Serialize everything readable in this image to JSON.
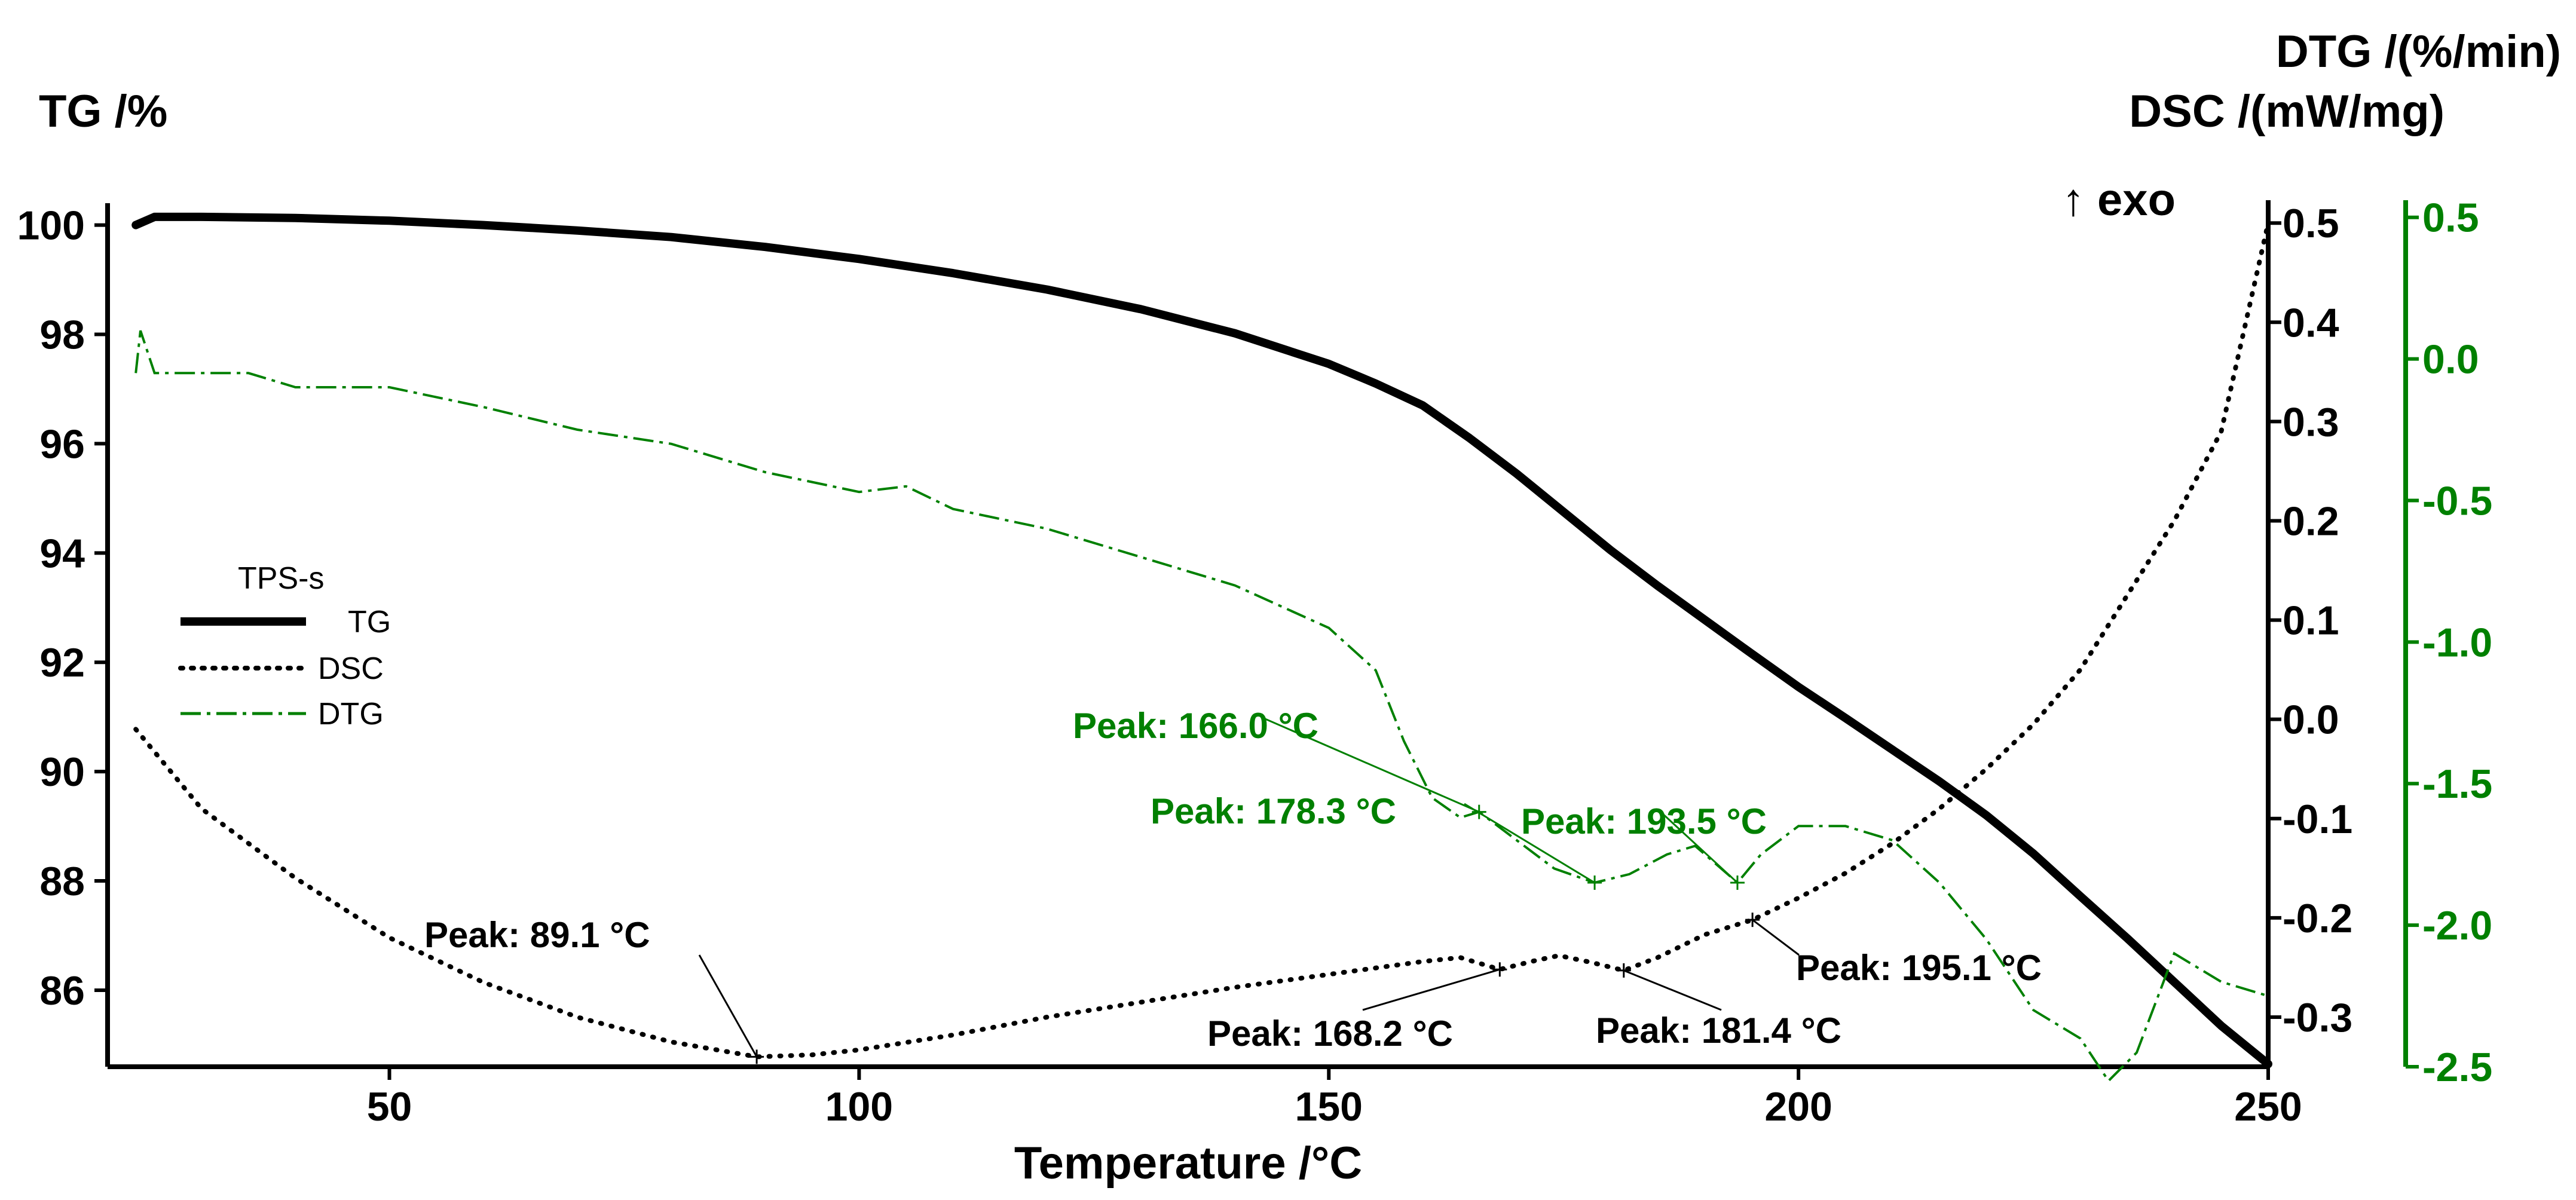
{
  "chart_data": {
    "type": "line",
    "title": "",
    "legend_title": "TPS-s",
    "legend_position": "middle-left",
    "xlabel": "Temperature /°C",
    "ylabel_left": "TG /%",
    "ylabel_right_top": "DTG /(%/min)",
    "ylabel_right_bottom": "DSC /(mW/mg)",
    "exo_label": "↑ exo",
    "colors": {
      "tg": "#000000",
      "dsc": "#000000",
      "dtg": "#008000"
    },
    "x_axis": {
      "range": [
        20,
        250
      ],
      "ticks": [
        50,
        100,
        150,
        200,
        250
      ],
      "tick_labels": [
        "50",
        "100",
        "150",
        "200",
        "250"
      ]
    },
    "tg_axis": {
      "range": [
        84.6,
        100.4
      ],
      "ticks": [
        86,
        88,
        90,
        92,
        94,
        96,
        98,
        100
      ],
      "tick_labels": [
        "86",
        "88",
        "90",
        "92",
        "94",
        "96",
        "98",
        "100"
      ]
    },
    "dsc_axis": {
      "range": [
        -0.35,
        0.52
      ],
      "ticks": [
        -0.3,
        -0.2,
        -0.1,
        0.0,
        0.1,
        0.2,
        0.3,
        0.4,
        0.5
      ],
      "tick_labels": [
        "-0.3",
        "-0.2",
        "-0.1",
        "0.0",
        "0.1",
        "0.2",
        "0.3",
        "0.4",
        "0.5"
      ]
    },
    "dtg_axis": {
      "range": [
        -2.5,
        0.55
      ],
      "ticks": [
        -2.5,
        -2.0,
        -1.5,
        -1.0,
        -0.5,
        0.0,
        0.5
      ],
      "tick_labels": [
        "-2.5",
        "-2.0",
        "-1.5",
        "-1.0",
        "-0.5",
        "0.0",
        "0.5"
      ]
    },
    "series": [
      {
        "name": "TG",
        "axis": "tg",
        "style": "solid",
        "x": [
          23,
          25,
          30,
          40,
          50,
          60,
          70,
          80,
          90,
          100,
          110,
          120,
          130,
          140,
          150,
          155,
          160,
          165,
          170,
          175,
          180,
          185,
          190,
          195,
          200,
          205,
          210,
          215,
          220,
          225,
          230,
          235,
          240,
          245,
          250
        ],
        "y": [
          100.0,
          100.15,
          100.15,
          100.13,
          100.08,
          100.0,
          99.9,
          99.78,
          99.6,
          99.38,
          99.12,
          98.82,
          98.46,
          98.02,
          97.46,
          97.1,
          96.7,
          96.1,
          95.45,
          94.75,
          94.05,
          93.4,
          92.78,
          92.16,
          91.55,
          90.98,
          90.4,
          89.82,
          89.2,
          88.5,
          87.72,
          86.95,
          86.15,
          85.35,
          84.65
        ]
      },
      {
        "name": "DSC",
        "axis": "dsc",
        "style": "dotted",
        "x": [
          23,
          30,
          40,
          50,
          60,
          70,
          80,
          89.1,
          95,
          100,
          110,
          120,
          130,
          140,
          150,
          160,
          164,
          168.2,
          172,
          174.5,
          178,
          181.4,
          185,
          190,
          195.1,
          200,
          205,
          210,
          215,
          220,
          225,
          230,
          235,
          240,
          245,
          250
        ],
        "y": [
          -0.01,
          -0.09,
          -0.16,
          -0.22,
          -0.265,
          -0.3,
          -0.325,
          -0.34,
          -0.338,
          -0.333,
          -0.318,
          -0.3,
          -0.285,
          -0.27,
          -0.257,
          -0.244,
          -0.24,
          -0.252,
          -0.243,
          -0.238,
          -0.245,
          -0.253,
          -0.24,
          -0.217,
          -0.202,
          -0.18,
          -0.155,
          -0.125,
          -0.09,
          -0.05,
          -0.005,
          0.05,
          0.125,
          0.2,
          0.29,
          0.5
        ]
      },
      {
        "name": "DTG",
        "axis": "dtg",
        "style": "dashdot",
        "x": [
          23,
          23.5,
          24,
          25,
          30,
          35,
          40,
          50,
          60,
          70,
          80,
          90,
          100,
          105,
          110,
          120,
          130,
          140,
          150,
          155,
          158,
          161,
          164,
          166,
          170,
          174,
          178.3,
          182,
          186,
          189,
          193.5,
          196,
          200,
          205,
          210,
          215,
          220,
          225,
          230,
          233,
          236,
          240,
          245,
          250
        ],
        "y": [
          -0.05,
          0.1,
          0.05,
          -0.05,
          -0.05,
          -0.05,
          -0.1,
          -0.1,
          -0.17,
          -0.25,
          -0.3,
          -0.4,
          -0.47,
          -0.45,
          -0.53,
          -0.6,
          -0.7,
          -0.8,
          -0.95,
          -1.1,
          -1.35,
          -1.55,
          -1.62,
          -1.6,
          -1.7,
          -1.8,
          -1.85,
          -1.82,
          -1.75,
          -1.72,
          -1.85,
          -1.75,
          -1.65,
          -1.65,
          -1.7,
          -1.85,
          -2.05,
          -2.3,
          -2.4,
          -2.55,
          -2.45,
          -2.1,
          -2.2,
          -2.25
        ]
      }
    ],
    "annotations": [
      {
        "text": "Peak: 89.1 °C",
        "series": "DSC",
        "x": 89.1,
        "color": "black"
      },
      {
        "text": "Peak: 168.2 °C",
        "series": "DSC",
        "x": 168.2,
        "color": "black"
      },
      {
        "text": "Peak: 181.4 °C",
        "series": "DSC",
        "x": 181.4,
        "color": "black"
      },
      {
        "text": "Peak: 195.1 °C",
        "series": "DSC",
        "x": 195.1,
        "color": "black"
      },
      {
        "text": "Peak: 166.0 °C",
        "series": "DTG",
        "x": 166.0,
        "color": "green"
      },
      {
        "text": "Peak: 178.3 °C",
        "series": "DTG",
        "x": 178.3,
        "color": "green"
      },
      {
        "text": "Peak: 193.5 °C",
        "series": "DTG",
        "x": 193.5,
        "color": "green"
      }
    ]
  }
}
